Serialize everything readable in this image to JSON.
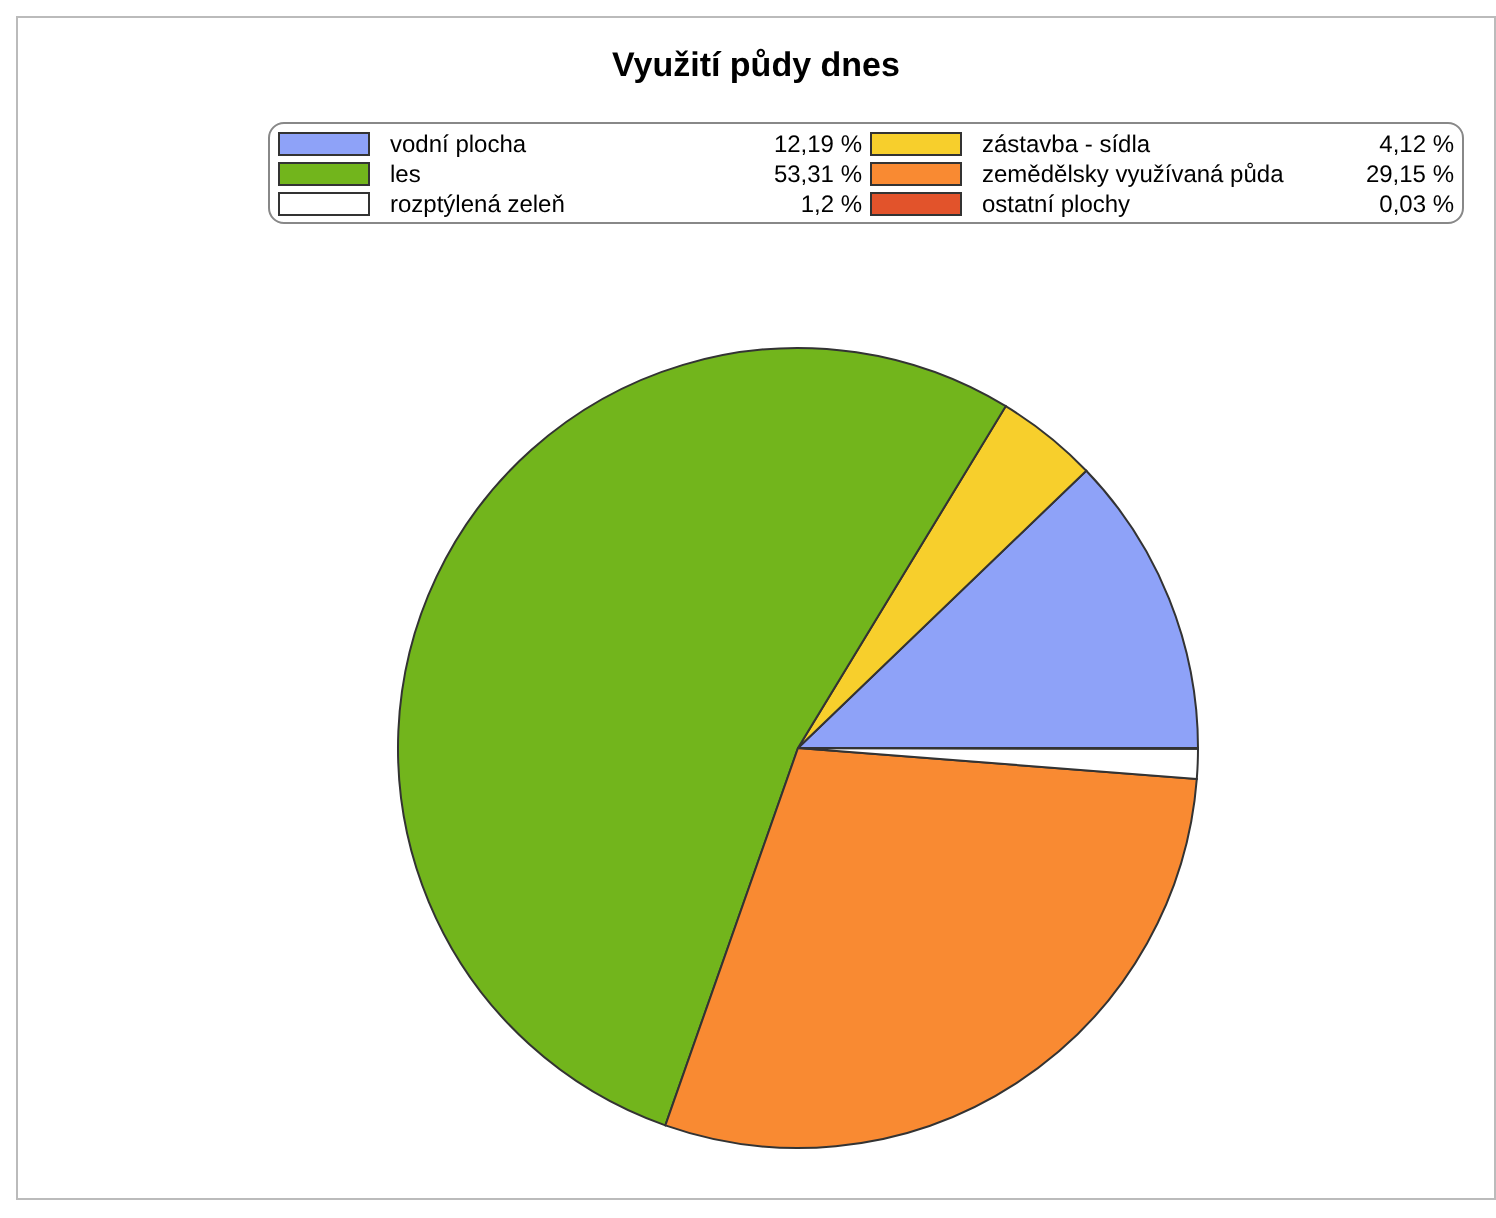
{
  "chart_data": {
    "type": "pie",
    "title": "Využití půdy dnes",
    "legend": "top",
    "categories": [
      "vodní plocha",
      "zástavba - sídla",
      "les",
      "zemědělsky využívaná půda",
      "rozptýlená zeleň",
      "ostatní plochy"
    ],
    "values": [
      12.19,
      4.12,
      53.31,
      29.15,
      1.2,
      0.03
    ],
    "value_labels": [
      "12,19 %",
      "4,12 %",
      "53,31 %",
      "29,15 %",
      "1,2 %",
      "0,03 %"
    ],
    "colors": [
      "#8ea2f8",
      "#f7cf2c",
      "#72b51c",
      "#f98a32",
      "#ffffff",
      "#e2532b"
    ]
  }
}
